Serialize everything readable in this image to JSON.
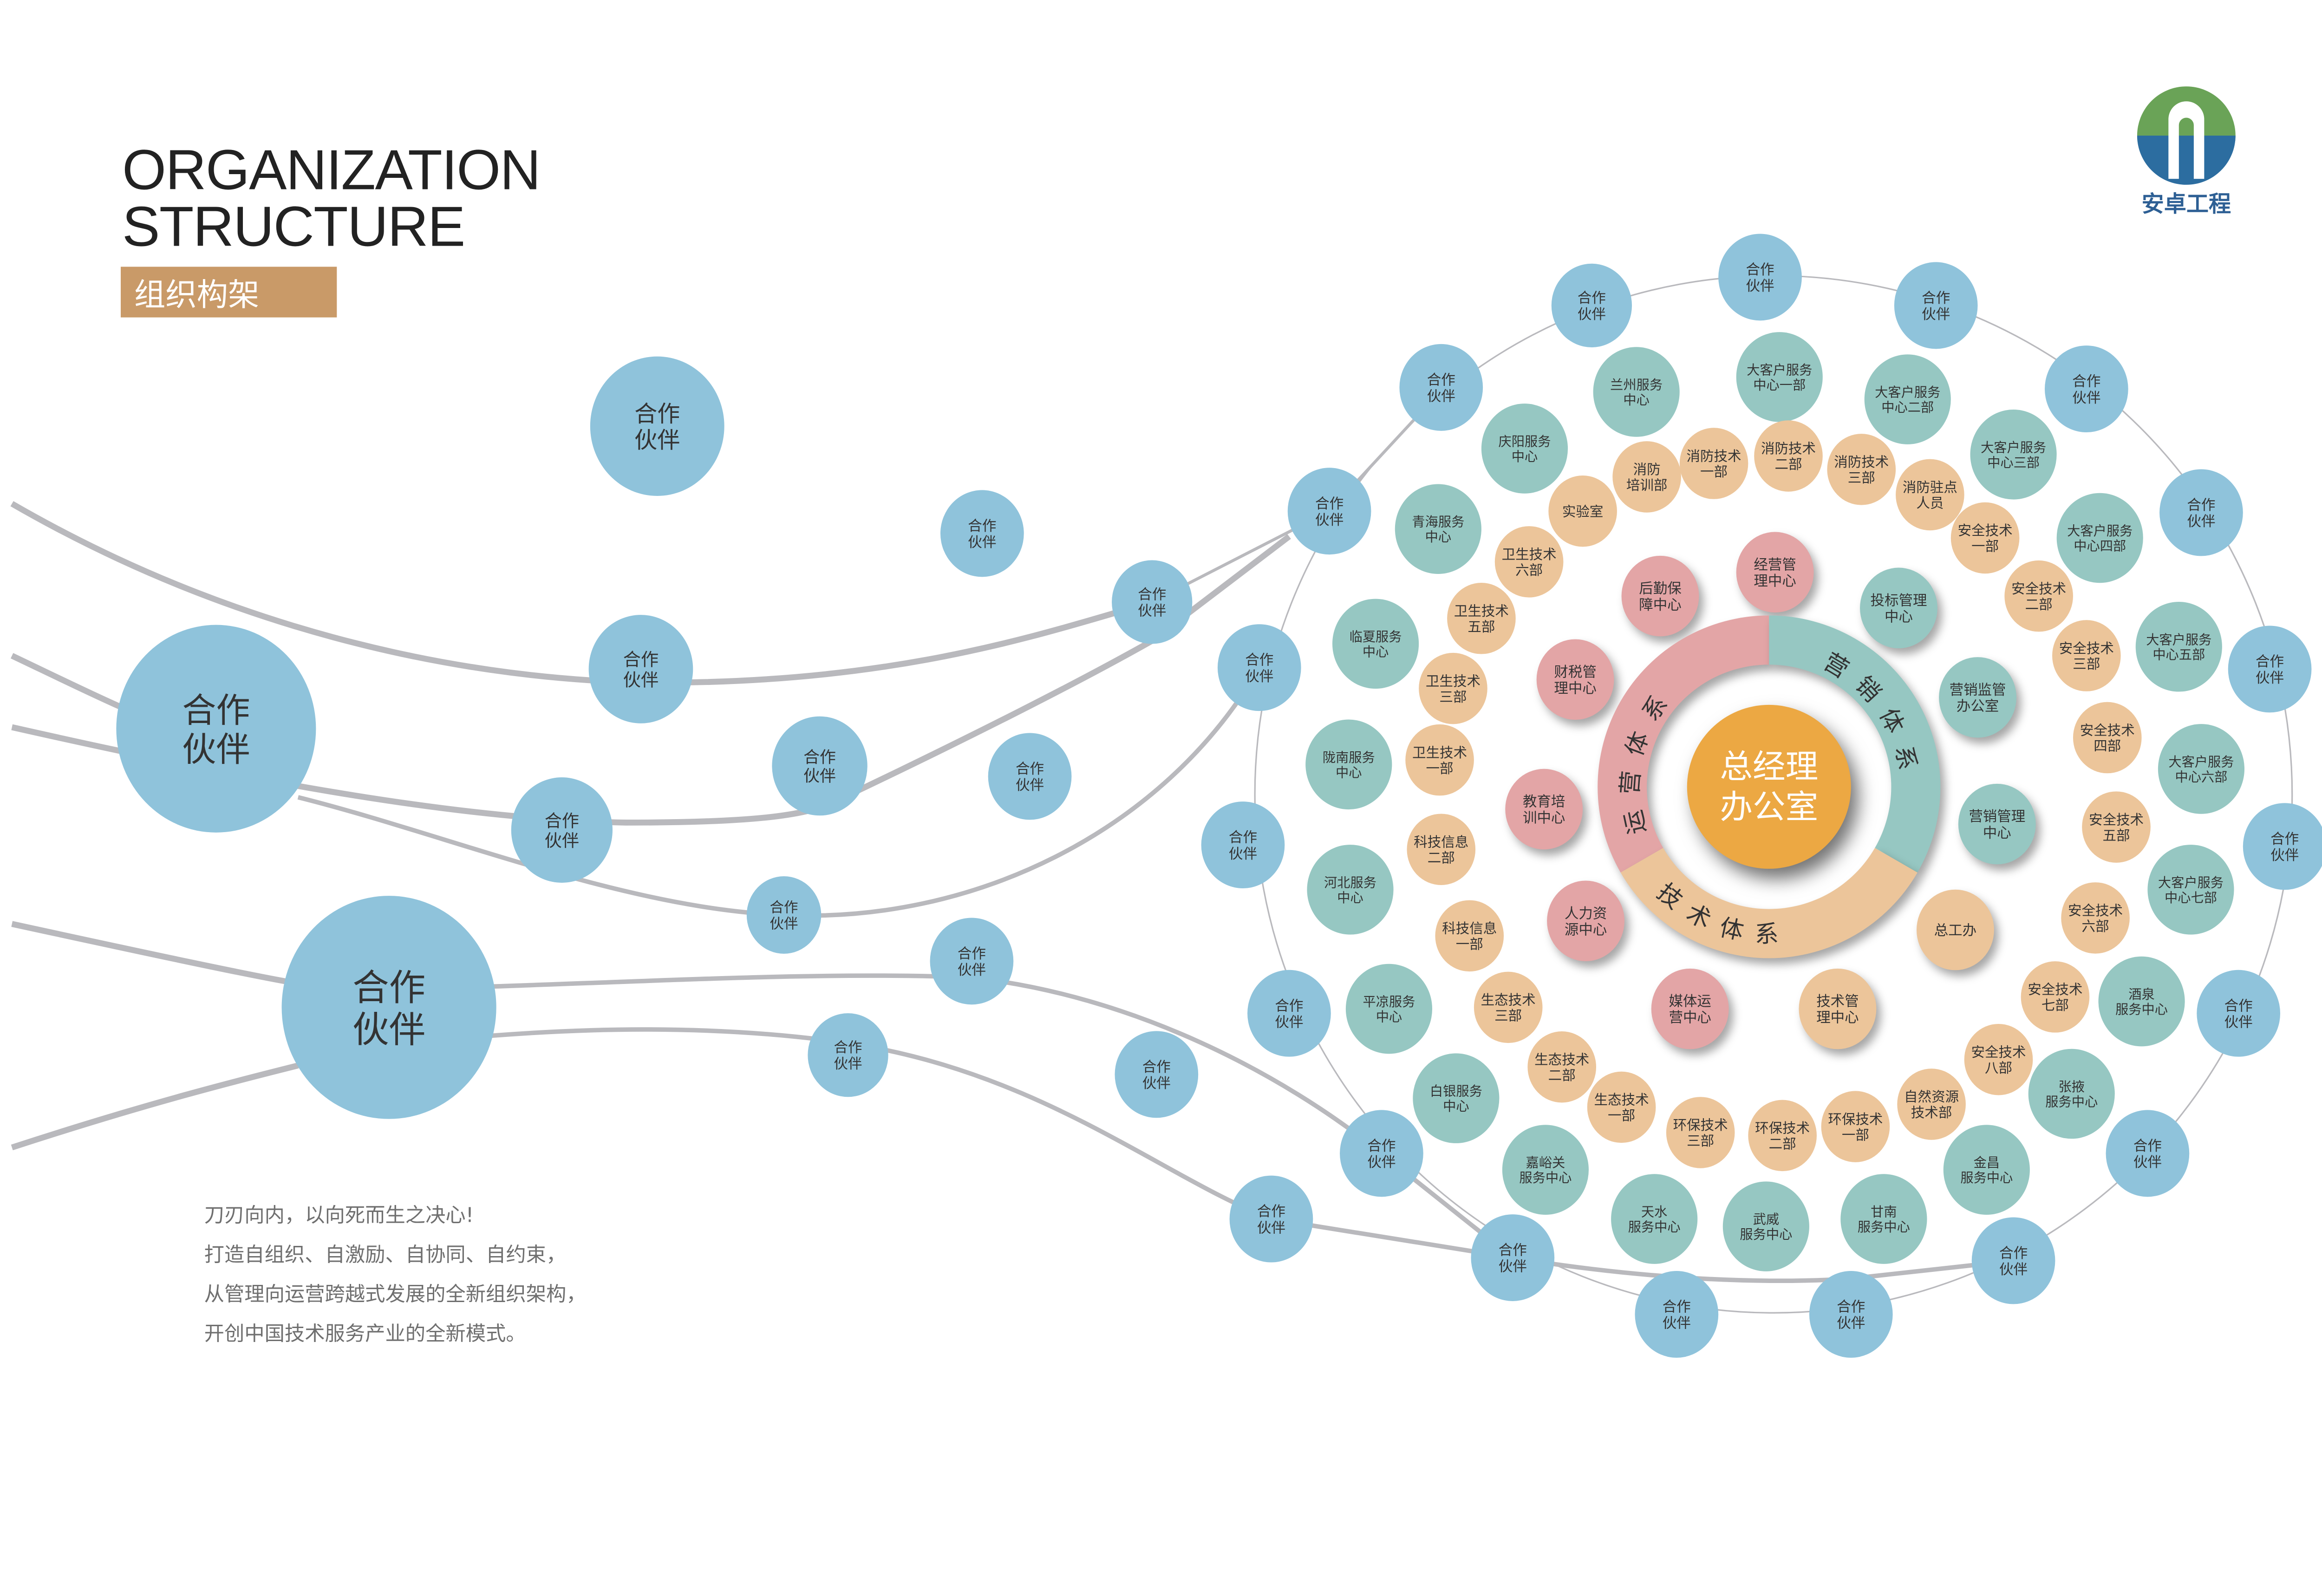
{
  "header": {
    "title_line1": "ORGANIZATION",
    "title_line2": "STRUCTURE",
    "badge": "组织构架"
  },
  "logo": {
    "name": "安卓工程"
  },
  "slogan": [
    "刀刃向内，以向死而生之决心!",
    "打造自组织、自激励、自协同、自约束，",
    "从管理向运营跨越式发展的全新组织架构，",
    "开创中国技术服务产业的全新模式。"
  ],
  "center": {
    "line1": "总经理",
    "line2": "办公室"
  },
  "systems": {
    "operations": "运营体系",
    "marketing": "营销体系",
    "technology": "技术体系"
  },
  "partner_label": [
    "合作",
    "伙伴"
  ],
  "service_centers": [
    [
      "兰州服务",
      "中心"
    ],
    [
      "大客户服务",
      "中心一部"
    ],
    [
      "大客户服务",
      "中心二部"
    ],
    [
      "庆阳服务",
      "中心"
    ],
    [
      "大客户服务",
      "中心三部"
    ],
    [
      "青海服务",
      "中心"
    ],
    [
      "大客户服务",
      "中心四部"
    ],
    [
      "临夏服务",
      "中心"
    ],
    [
      "大客户服务",
      "中心五部"
    ],
    [
      "陇南服务",
      "中心"
    ],
    [
      "大客户服务",
      "中心六部"
    ],
    [
      "河北服务",
      "中心"
    ],
    [
      "大客户服务",
      "中心七部"
    ],
    [
      "平凉服务",
      "中心"
    ],
    [
      "酒泉",
      "服务中心"
    ],
    [
      "白银服务",
      "中心"
    ],
    [
      "张掖",
      "服务中心"
    ],
    [
      "嘉峪关",
      "服务中心"
    ],
    [
      "金昌",
      "服务中心"
    ],
    [
      "天水",
      "服务中心"
    ],
    [
      "武威",
      "服务中心"
    ],
    [
      "甘南",
      "服务中心"
    ]
  ],
  "technical_depts": [
    [
      "实验室"
    ],
    [
      "消防",
      "培训部"
    ],
    [
      "消防技术",
      "一部"
    ],
    [
      "消防技术",
      "二部"
    ],
    [
      "消防技术",
      "三部"
    ],
    [
      "消防驻点",
      "人员"
    ],
    [
      "卫生技术",
      "六部"
    ],
    [
      "安全技术",
      "一部"
    ],
    [
      "卫生技术",
      "五部"
    ],
    [
      "安全技术",
      "二部"
    ],
    [
      "卫生技术",
      "三部"
    ],
    [
      "安全技术",
      "三部"
    ],
    [
      "卫生技术",
      "一部"
    ],
    [
      "安全技术",
      "四部"
    ],
    [
      "科技信息",
      "二部"
    ],
    [
      "安全技术",
      "五部"
    ],
    [
      "科技信息",
      "一部"
    ],
    [
      "安全技术",
      "六部"
    ],
    [
      "生态技术",
      "三部"
    ],
    [
      "安全技术",
      "七部"
    ],
    [
      "生态技术",
      "二部"
    ],
    [
      "安全技术",
      "八部"
    ],
    [
      "生态技术",
      "一部"
    ],
    [
      "自然资源",
      "技术部"
    ],
    [
      "环保技术",
      "三部"
    ],
    [
      "环保技术",
      "二部"
    ],
    [
      "环保技术",
      "一部"
    ]
  ],
  "inner_centers": [
    [
      "经营管",
      "理中心"
    ],
    [
      "后勤保",
      "障中心"
    ],
    [
      "投标管理",
      "中心"
    ],
    [
      "财税管",
      "理中心"
    ],
    [
      "营销监管",
      "办公室"
    ],
    [
      "教育培",
      "训中心"
    ],
    [
      "营销管理",
      "中心"
    ],
    [
      "人力资",
      "源中心"
    ],
    [
      "总工办"
    ],
    [
      "媒体运",
      "营中心"
    ],
    [
      "技术管",
      "理中心"
    ]
  ],
  "colors": {
    "partner": "#8fc3db",
    "service": "#96c7c2",
    "technical": "#ecc59a",
    "operations": "#e3a5a6",
    "center": "#eca843",
    "badge": "#c99a68",
    "logo_green": "#6aa357",
    "logo_blue": "#2c6da0"
  }
}
